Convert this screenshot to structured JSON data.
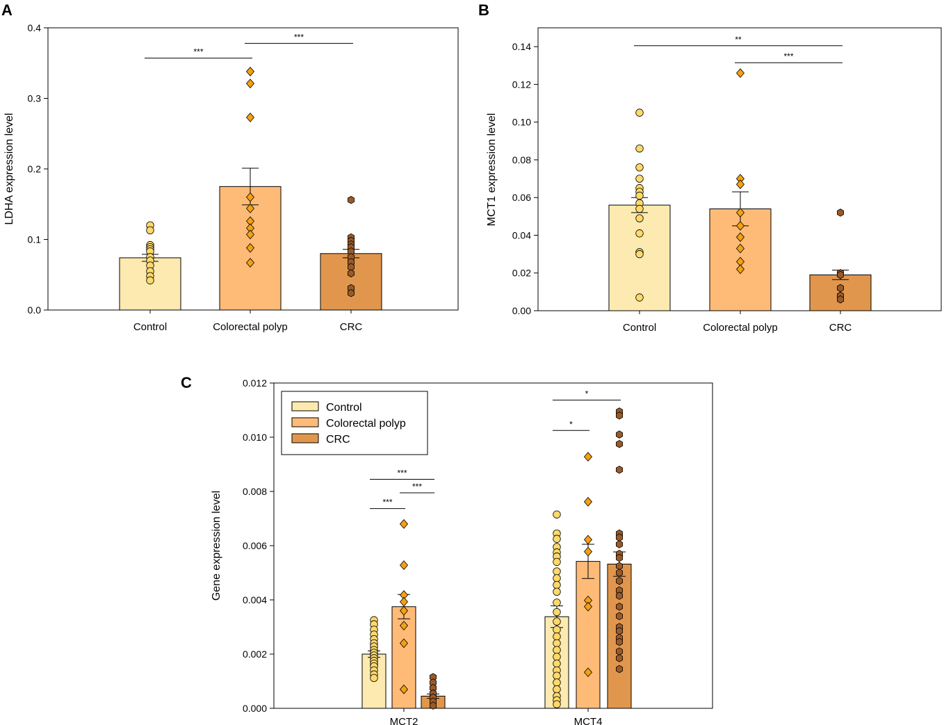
{
  "colors": {
    "control": "#fdeab0",
    "polyp": "#fdbb77",
    "crc": "#e0974d",
    "control_point": "#fdd96b",
    "polyp_point": "#f5a00f",
    "crc_point": "#9a5a28"
  },
  "chart_data": [
    {
      "panel": "A",
      "type": "bar",
      "categories": [
        "Control",
        "Colorectal polyp",
        "CRC"
      ],
      "values": [
        0.074,
        0.175,
        0.08
      ],
      "sem": [
        0.005,
        0.026,
        0.006
      ],
      "points": [
        [
          0.12,
          0.113,
          0.092,
          0.089,
          0.086,
          0.083,
          0.075,
          0.07,
          0.063,
          0.055,
          0.048,
          0.042
        ],
        [
          0.338,
          0.321,
          0.273,
          0.16,
          0.144,
          0.126,
          0.116,
          0.107,
          0.088,
          0.067
        ],
        [
          0.156,
          0.103,
          0.098,
          0.093,
          0.089,
          0.083,
          0.075,
          0.068,
          0.061,
          0.052,
          0.031,
          0.024
        ]
      ],
      "markers": [
        "circle",
        "diamond",
        "hexagon"
      ],
      "ylabel": "LDHA expression level",
      "ylim": [
        0,
        0.4
      ],
      "yticks": [
        "0.0",
        "0.1",
        "0.2",
        "0.3",
        "0.4"
      ],
      "significance": [
        {
          "from": 0,
          "to": 1,
          "y": 0.357,
          "label": "***"
        },
        {
          "from": 1,
          "to": 2,
          "y": 0.378,
          "label": "***"
        }
      ]
    },
    {
      "panel": "B",
      "type": "bar",
      "categories": [
        "Control",
        "Colorectal polyp",
        "CRC"
      ],
      "values": [
        0.056,
        0.054,
        0.019
      ],
      "sem": [
        0.004,
        0.009,
        0.0025
      ],
      "points": [
        [
          0.105,
          0.086,
          0.076,
          0.07,
          0.065,
          0.063,
          0.061,
          0.057,
          0.054,
          0.049,
          0.041,
          0.031,
          0.03,
          0.007
        ],
        [
          0.126,
          0.07,
          0.067,
          0.052,
          0.045,
          0.039,
          0.033,
          0.026,
          0.022
        ],
        [
          0.052,
          0.02,
          0.019,
          0.012,
          0.008,
          0.006
        ]
      ],
      "markers": [
        "circle",
        "diamond",
        "hexagon"
      ],
      "ylabel": "MCT1 expression level",
      "ylim": [
        0,
        0.15
      ],
      "yticks": [
        "0.00",
        "0.02",
        "0.04",
        "0.06",
        "0.08",
        "0.10",
        "0.12",
        "0.14"
      ],
      "significance": [
        {
          "from": 0,
          "to": 2,
          "y": 0.1405,
          "label": "**"
        },
        {
          "from": 1,
          "to": 2,
          "y": 0.1315,
          "label": "***"
        }
      ]
    },
    {
      "panel": "C",
      "type": "bar",
      "categories": [
        "MCT2",
        "MCT4"
      ],
      "series": [
        {
          "name": "Control",
          "values": [
            0.002,
            0.00338
          ],
          "sem": [
            0.00012,
            0.0004
          ]
        },
        {
          "name": "Colorectal polyp",
          "values": [
            0.00375,
            0.00542
          ],
          "sem": [
            0.00045,
            0.00063
          ]
        },
        {
          "name": "CRC",
          "values": [
            0.00045,
            0.00532
          ],
          "sem": [
            8e-05,
            0.00045
          ]
        }
      ],
      "points": [
        [
          [
            0.00325,
            0.0031,
            0.0029,
            0.00272,
            0.00255,
            0.0024,
            0.00228,
            0.00215,
            0.00205,
            0.00195,
            0.00185,
            0.00175,
            0.00165,
            0.00155,
            0.0014,
            0.00125,
            0.00112
          ],
          [
            0.0068,
            0.00528,
            0.00418,
            0.00393,
            0.0036,
            0.00305,
            0.0024,
            0.0007
          ],
          [
            0.00115,
            0.00095,
            0.00075,
            0.00055,
            0.0004,
            0.00025,
            0.0001
          ]
        ],
        [
          [
            0.00715,
            0.00645,
            0.00625,
            0.00595,
            0.00575,
            0.0056,
            0.0054,
            0.00505,
            0.0048,
            0.00455,
            0.0043,
            0.0039,
            0.00355,
            0.0032,
            0.0029,
            0.00265,
            0.0024,
            0.00215,
            0.0019,
            0.00165,
            0.0014,
            0.0012,
            0.00095,
            0.0007,
            0.00045,
            0.0003,
            0.00015
          ],
          [
            0.00928,
            0.00762,
            0.00622,
            0.00578,
            0.00398,
            0.00375,
            0.00133
          ],
          [
            0.01095,
            0.0108,
            0.0101,
            0.00975,
            0.0088,
            0.00645,
            0.0063,
            0.00605,
            0.0057,
            0.00555,
            0.00525,
            0.005,
            0.0047,
            0.00435,
            0.00415,
            0.00375,
            0.0034,
            0.003,
            0.00285,
            0.0026,
            0.00245,
            0.0021,
            0.00185,
            0.00145
          ]
        ]
      ],
      "markers": [
        "circle",
        "diamond",
        "hexagon"
      ],
      "ylabel": "Gene expression level",
      "ylim": [
        0,
        0.012
      ],
      "yticks": [
        "0.000",
        "0.002",
        "0.004",
        "0.006",
        "0.008",
        "0.010",
        "0.012"
      ],
      "legend": {
        "position": "top-left",
        "entries": [
          "Control",
          "Colorectal polyp",
          "CRC"
        ]
      },
      "significance": [
        {
          "category": 0,
          "from": 0,
          "to": 2,
          "y": 0.00845,
          "label": "***"
        },
        {
          "category": 0,
          "from": 1,
          "to": 2,
          "y": 0.00795,
          "label": "***"
        },
        {
          "category": 0,
          "from": 0,
          "to": 1,
          "y": 0.00737,
          "label": "***"
        },
        {
          "category": 1,
          "from": 0,
          "to": 2,
          "y": 0.01137,
          "label": "*"
        },
        {
          "category": 1,
          "from": 0,
          "to": 1,
          "y": 0.01025,
          "label": "*"
        }
      ]
    }
  ]
}
